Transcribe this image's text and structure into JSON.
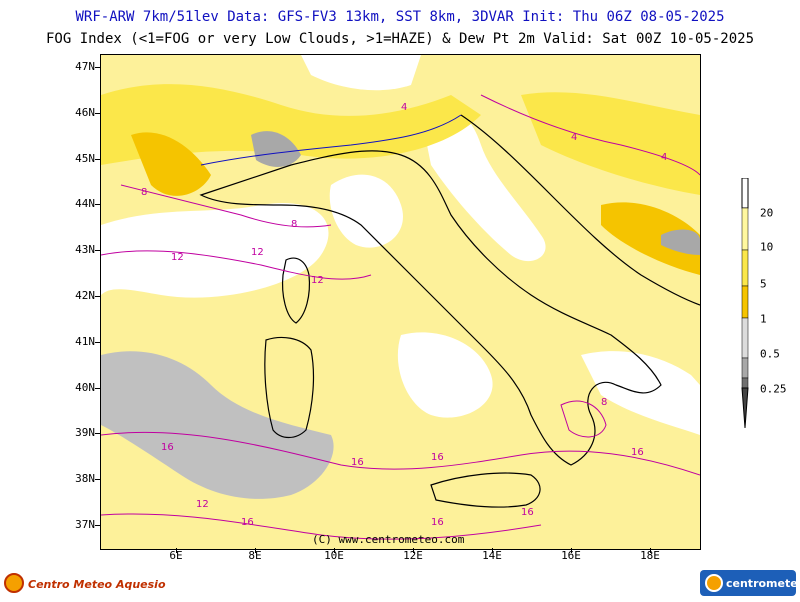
{
  "header": {
    "line1": "WRF-ARW 7km/51lev  Data: GFS-FV3 13km, SST 8km, 3DVAR  Init: Thu 06Z 08-05-2025",
    "line2": "FOG Index (<1=FOG or very Low Clouds, >1=HAZE) & Dew Pt 2m  Valid: Sat 00Z 10-05-2025"
  },
  "map": {
    "lat_labels": [
      "47N",
      "46N",
      "45N",
      "44N",
      "43N",
      "42N",
      "41N",
      "40N",
      "39N",
      "38N",
      "37N"
    ],
    "lon_labels": [
      "6E",
      "8E",
      "10E",
      "12E",
      "14E",
      "16E",
      "18E"
    ],
    "credit": "(C) www.centrometeo.com",
    "contour_labels": [
      "16",
      "12",
      "16",
      "16",
      "16",
      "12",
      "12",
      "8",
      "8",
      "4",
      "4",
      "16",
      "16",
      "12",
      "8",
      "16",
      "4"
    ]
  },
  "colorbar": {
    "labels": [
      "20",
      "10",
      "5",
      "1",
      "0.5",
      "0.25"
    ],
    "colors": [
      "#fff8a0",
      "#fbe74a",
      "#f5c400",
      "#dcdcdc",
      "#a8a8a8",
      "#707070",
      "#444444"
    ]
  },
  "colors": {
    "haze_light": "#fdf19a",
    "haze_mid": "#fbe74a",
    "haze_strong": "#f5c400",
    "fog": "#c0c0c0",
    "land_clear": "#ffffff",
    "contour": "#c000a0",
    "title": "#1010c0"
  },
  "logos": {
    "left": "Centro Meteo Aquesio",
    "right": "centrometeo"
  }
}
